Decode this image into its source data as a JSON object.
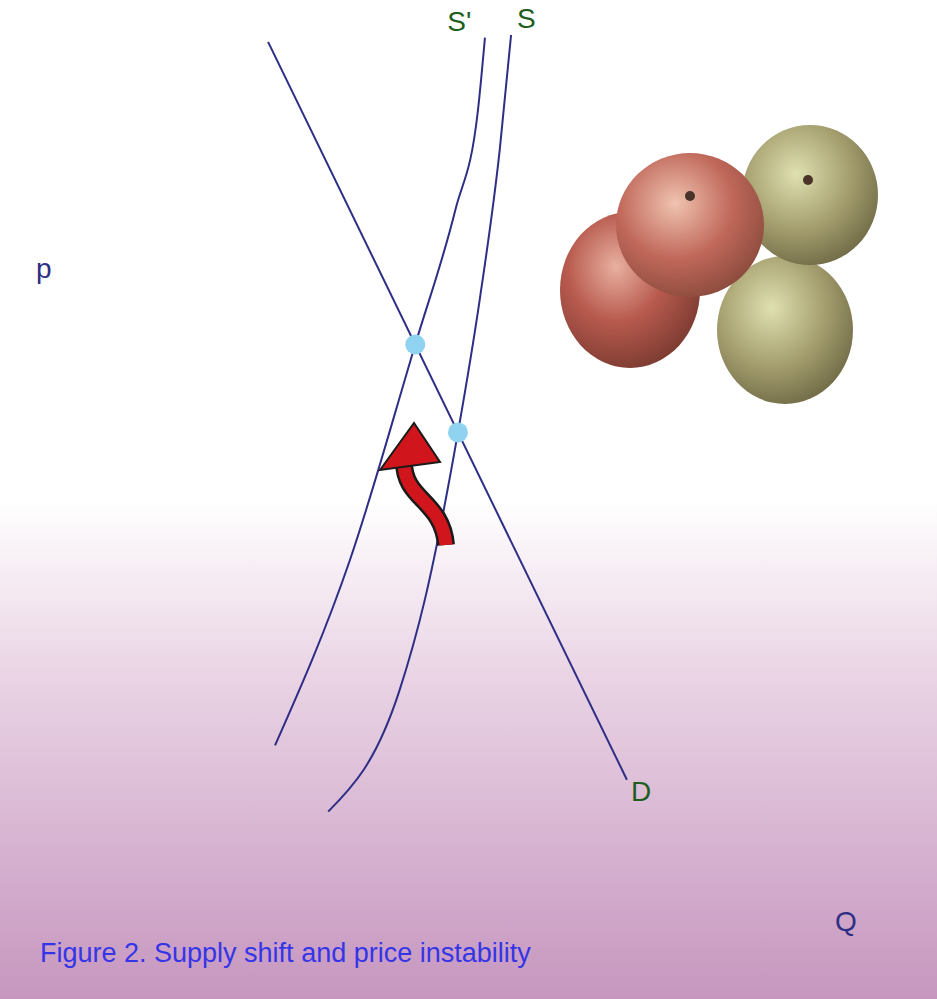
{
  "chart_data": {
    "type": "line",
    "title": "Figure 2. Supply shift and price instability",
    "x_label": "Q",
    "y_label": "p",
    "xlim": [
      0,
      100
    ],
    "ylim": [
      0,
      100
    ],
    "tick_labels": false,
    "grid": false,
    "series": [
      {
        "name": "S'",
        "color": "#2e2e86",
        "x": [
          24.0,
          32.6,
          40.1,
          44.7,
          47.3,
          48.1
        ],
        "values": [
          17.6,
          39.1,
          64.1,
          79.7,
          91.3,
          99.7
        ]
      },
      {
        "name": "S",
        "color": "#2e2e86",
        "x": [
          30.1,
          38.3,
          41.2,
          45.0,
          47.5,
          49.8,
          51.1
        ],
        "values": [
          9.9,
          24.0,
          34.5,
          53.9,
          69.3,
          86.7,
          100
        ]
      },
      {
        "name": "D",
        "color": "#2e2e86",
        "x": [
          23.2,
          64.4
        ],
        "values": [
          99.2,
          13.6
        ]
      }
    ],
    "equilibria": {
      "color": "#8fd3f0",
      "x": [
        40.1,
        45.0
      ],
      "values": [
        64.1,
        53.9
      ]
    }
  }
}
